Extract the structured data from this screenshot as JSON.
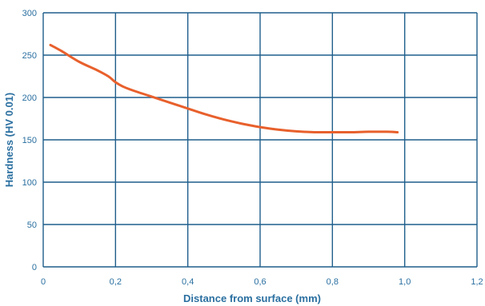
{
  "chart_data": {
    "type": "line",
    "title": "",
    "xlabel": "Distance from surface (mm)",
    "ylabel": "Hardness (HV 0.01)",
    "xlim": [
      0,
      1.2
    ],
    "ylim": [
      0,
      300
    ],
    "xticks": [
      0,
      0.2,
      0.4,
      0.6,
      0.8,
      1.0,
      1.2
    ],
    "xtick_labels": [
      "0",
      "0,2",
      "0,4",
      "0,6",
      "0,8",
      "1,0",
      "1,2"
    ],
    "yticks": [
      0,
      50,
      100,
      150,
      200,
      250,
      300
    ],
    "ytick_labels": [
      "0",
      "50",
      "100",
      "150",
      "200",
      "250",
      "300"
    ],
    "grid": true,
    "legend": "none",
    "series": [
      {
        "color": "#e8602c",
        "x": [
          0.02,
          0.05,
          0.1,
          0.15,
          0.18,
          0.2,
          0.22,
          0.25,
          0.3,
          0.35,
          0.4,
          0.45,
          0.5,
          0.55,
          0.6,
          0.65,
          0.7,
          0.75,
          0.8,
          0.85,
          0.9,
          0.95,
          0.98
        ],
        "y": [
          262,
          255,
          242,
          232,
          225,
          218,
          213,
          208,
          201,
          194,
          187,
          180,
          174,
          169,
          165,
          162,
          160,
          159,
          159,
          159,
          159.5,
          159.5,
          159
        ]
      }
    ]
  }
}
